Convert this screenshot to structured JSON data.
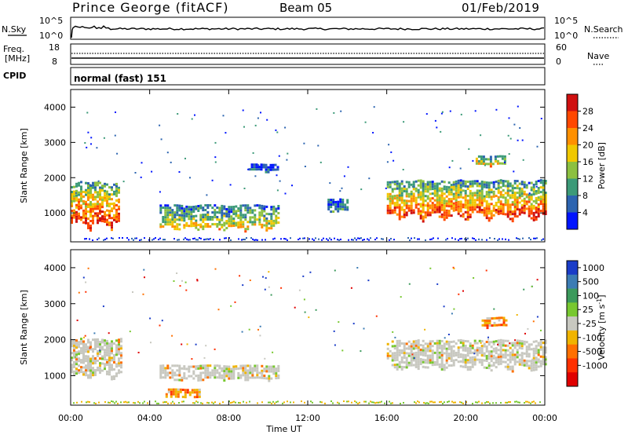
{
  "header": {
    "station": "Prince George (fitACF)",
    "beam": "Beam 05",
    "date": "01/Feb/2019"
  },
  "status_panels": {
    "nsky": {
      "left_label": "N.Sky",
      "left_ticks": [
        "10^5",
        "10^0"
      ],
      "right_label": "N.Search",
      "right_ticks": [
        "10^5",
        "10^0"
      ]
    },
    "freq": {
      "left_label_1": "Freq.",
      "left_label_2": "[MHz]",
      "left_ticks": [
        "18",
        "8"
      ],
      "right_label": "Nave",
      "right_ticks": [
        "60",
        "0"
      ]
    },
    "cpid": {
      "label": "CPID",
      "mode": "normal (fast) 151"
    }
  },
  "chart_data": [
    {
      "type": "heatmap",
      "name": "power",
      "ylabel": "Slant Range [km]",
      "ylim": [
        180,
        4500
      ],
      "yticks": [
        1000,
        2000,
        3000,
        4000
      ],
      "xlim": [
        0,
        24
      ],
      "xticks": [
        "00:00",
        "04:00",
        "08:00",
        "12:00",
        "16:00",
        "20:00",
        "00:00"
      ],
      "colorbar": {
        "label": "Power [dB]",
        "ticks": [
          "28",
          "24",
          "20",
          "16",
          "12",
          "8",
          "4"
        ],
        "colors": [
          "#d01010",
          "#ff4800",
          "#ff9000",
          "#f0c800",
          "#8cc040",
          "#3c9a78",
          "#2c64b0",
          "#0014ff"
        ]
      },
      "features": [
        {
          "t0": 0.0,
          "t1": 2.5,
          "r0": 300,
          "r1": 2200,
          "level": 0.85
        },
        {
          "t0": 4.5,
          "t1": 10.5,
          "r0": 400,
          "r1": 1400,
          "level": 0.55
        },
        {
          "t0": 13.0,
          "t1": 14.0,
          "r0": 950,
          "r1": 1500,
          "level": 0.3
        },
        {
          "t0": 16.0,
          "t1": 24.0,
          "r0": 600,
          "r1": 2200,
          "level": 0.8
        },
        {
          "t0": 20.5,
          "t1": 22.0,
          "r0": 2300,
          "r1": 2700,
          "level": 0.6
        },
        {
          "t0": 9.0,
          "t1": 10.5,
          "r0": 2150,
          "r1": 2450,
          "level": 0.25
        }
      ]
    },
    {
      "type": "heatmap",
      "name": "velocity",
      "ylabel": "Slant Range [km]",
      "ylim": [
        180,
        4500
      ],
      "yticks": [
        1000,
        2000,
        3000,
        4000
      ],
      "xlim": [
        0,
        24
      ],
      "xticks": [
        "00:00",
        "04:00",
        "08:00",
        "12:00",
        "16:00",
        "20:00",
        "00:00"
      ],
      "xlabel": "Time UT",
      "colorbar": {
        "label": "Velocity [m s-1]",
        "label_main": "Velocity [m s",
        "label_sup": "-1",
        "label_end": "]",
        "ticks": [
          "1000",
          "500",
          "100",
          "25",
          "-25",
          "-100",
          "-500",
          "-1000"
        ],
        "colors": [
          "#1a3cc8",
          "#3c7cb4",
          "#3c9a5c",
          "#78c830",
          "#c8c8c0",
          "#f0b400",
          "#ff7000",
          "#ff3000",
          "#e00000"
        ]
      },
      "features": [
        {
          "t0": 0.0,
          "t1": 2.6,
          "r0": 700,
          "r1": 2300,
          "level": 0.0
        },
        {
          "t0": 4.5,
          "t1": 10.5,
          "r0": 800,
          "r1": 1400,
          "level": 0.0
        },
        {
          "t0": 16.0,
          "t1": 24.0,
          "r0": 1000,
          "r1": 2200,
          "level": 0.0
        },
        {
          "t0": 4.8,
          "t1": 6.5,
          "r0": 350,
          "r1": 700,
          "level": -0.5
        },
        {
          "t0": 20.8,
          "t1": 22.0,
          "r0": 2300,
          "r1": 2700,
          "level": -0.4
        }
      ]
    }
  ]
}
